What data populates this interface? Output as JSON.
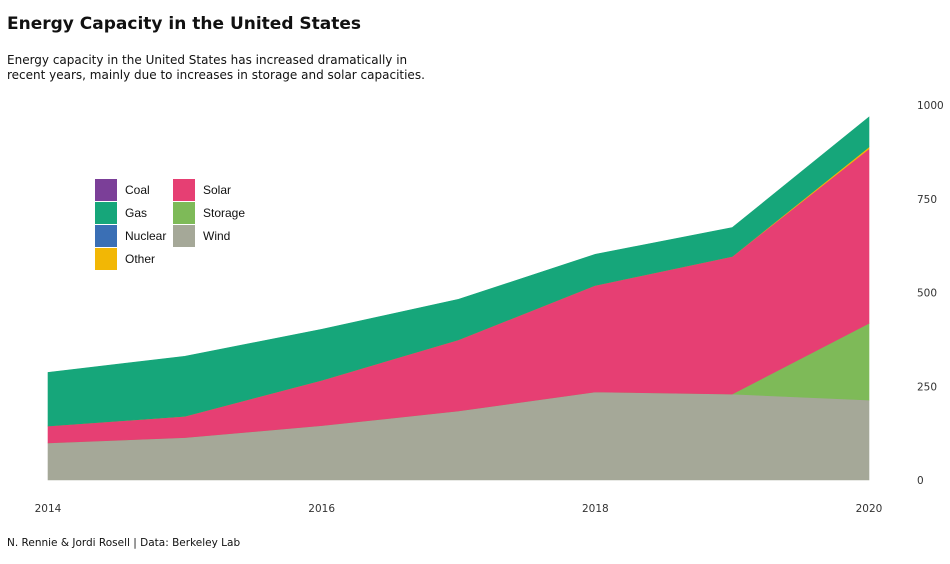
{
  "title": "Energy Capacity in the United States",
  "subtitle": "Energy capacity in the United States has increased dramatically in recent years, mainly due to increases in storage and solar capacities.",
  "caption": "N. Rennie & Jordi Rosell | Data: Berkeley Lab",
  "chart_data": {
    "type": "area",
    "stacked": true,
    "x": [
      2014,
      2015,
      2016,
      2017,
      2018,
      2019,
      2020
    ],
    "xticks": [
      2014,
      2016,
      2018,
      2020
    ],
    "yticks": [
      0,
      250,
      500,
      750,
      1000
    ],
    "ylim": [
      0,
      1000
    ],
    "y_axis_position": "right",
    "grid": false,
    "legend_position": "left",
    "stack_order": [
      "Wind",
      "Storage",
      "Solar",
      "Other",
      "Nuclear",
      "Gas",
      "Coal"
    ],
    "series": [
      {
        "name": "Coal",
        "color": "#7B3F98",
        "values": [
          0,
          0,
          0,
          0,
          0,
          0,
          0
        ]
      },
      {
        "name": "Gas",
        "color": "#16A67A",
        "values": [
          143,
          160,
          136,
          108,
          83,
          77,
          80
        ]
      },
      {
        "name": "Nuclear",
        "color": "#3A6FB5",
        "values": [
          0,
          0,
          0,
          0,
          0,
          0,
          0
        ]
      },
      {
        "name": "Other",
        "color": "#F2B705",
        "values": [
          0,
          0,
          0,
          0,
          0,
          0,
          5
        ]
      },
      {
        "name": "Solar",
        "color": "#E63F73",
        "values": [
          45,
          57,
          121,
          190,
          284,
          367,
          465
        ]
      },
      {
        "name": "Storage",
        "color": "#7EBA58",
        "values": [
          0,
          0,
          0,
          0,
          0,
          0,
          205
        ]
      },
      {
        "name": "Wind",
        "color": "#A5A898",
        "values": [
          99,
          113,
          145,
          184,
          235,
          229,
          213
        ]
      }
    ],
    "legend_columns": [
      [
        "Coal",
        "Gas",
        "Nuclear",
        "Other"
      ],
      [
        "Solar",
        "Storage",
        "Wind"
      ]
    ]
  }
}
